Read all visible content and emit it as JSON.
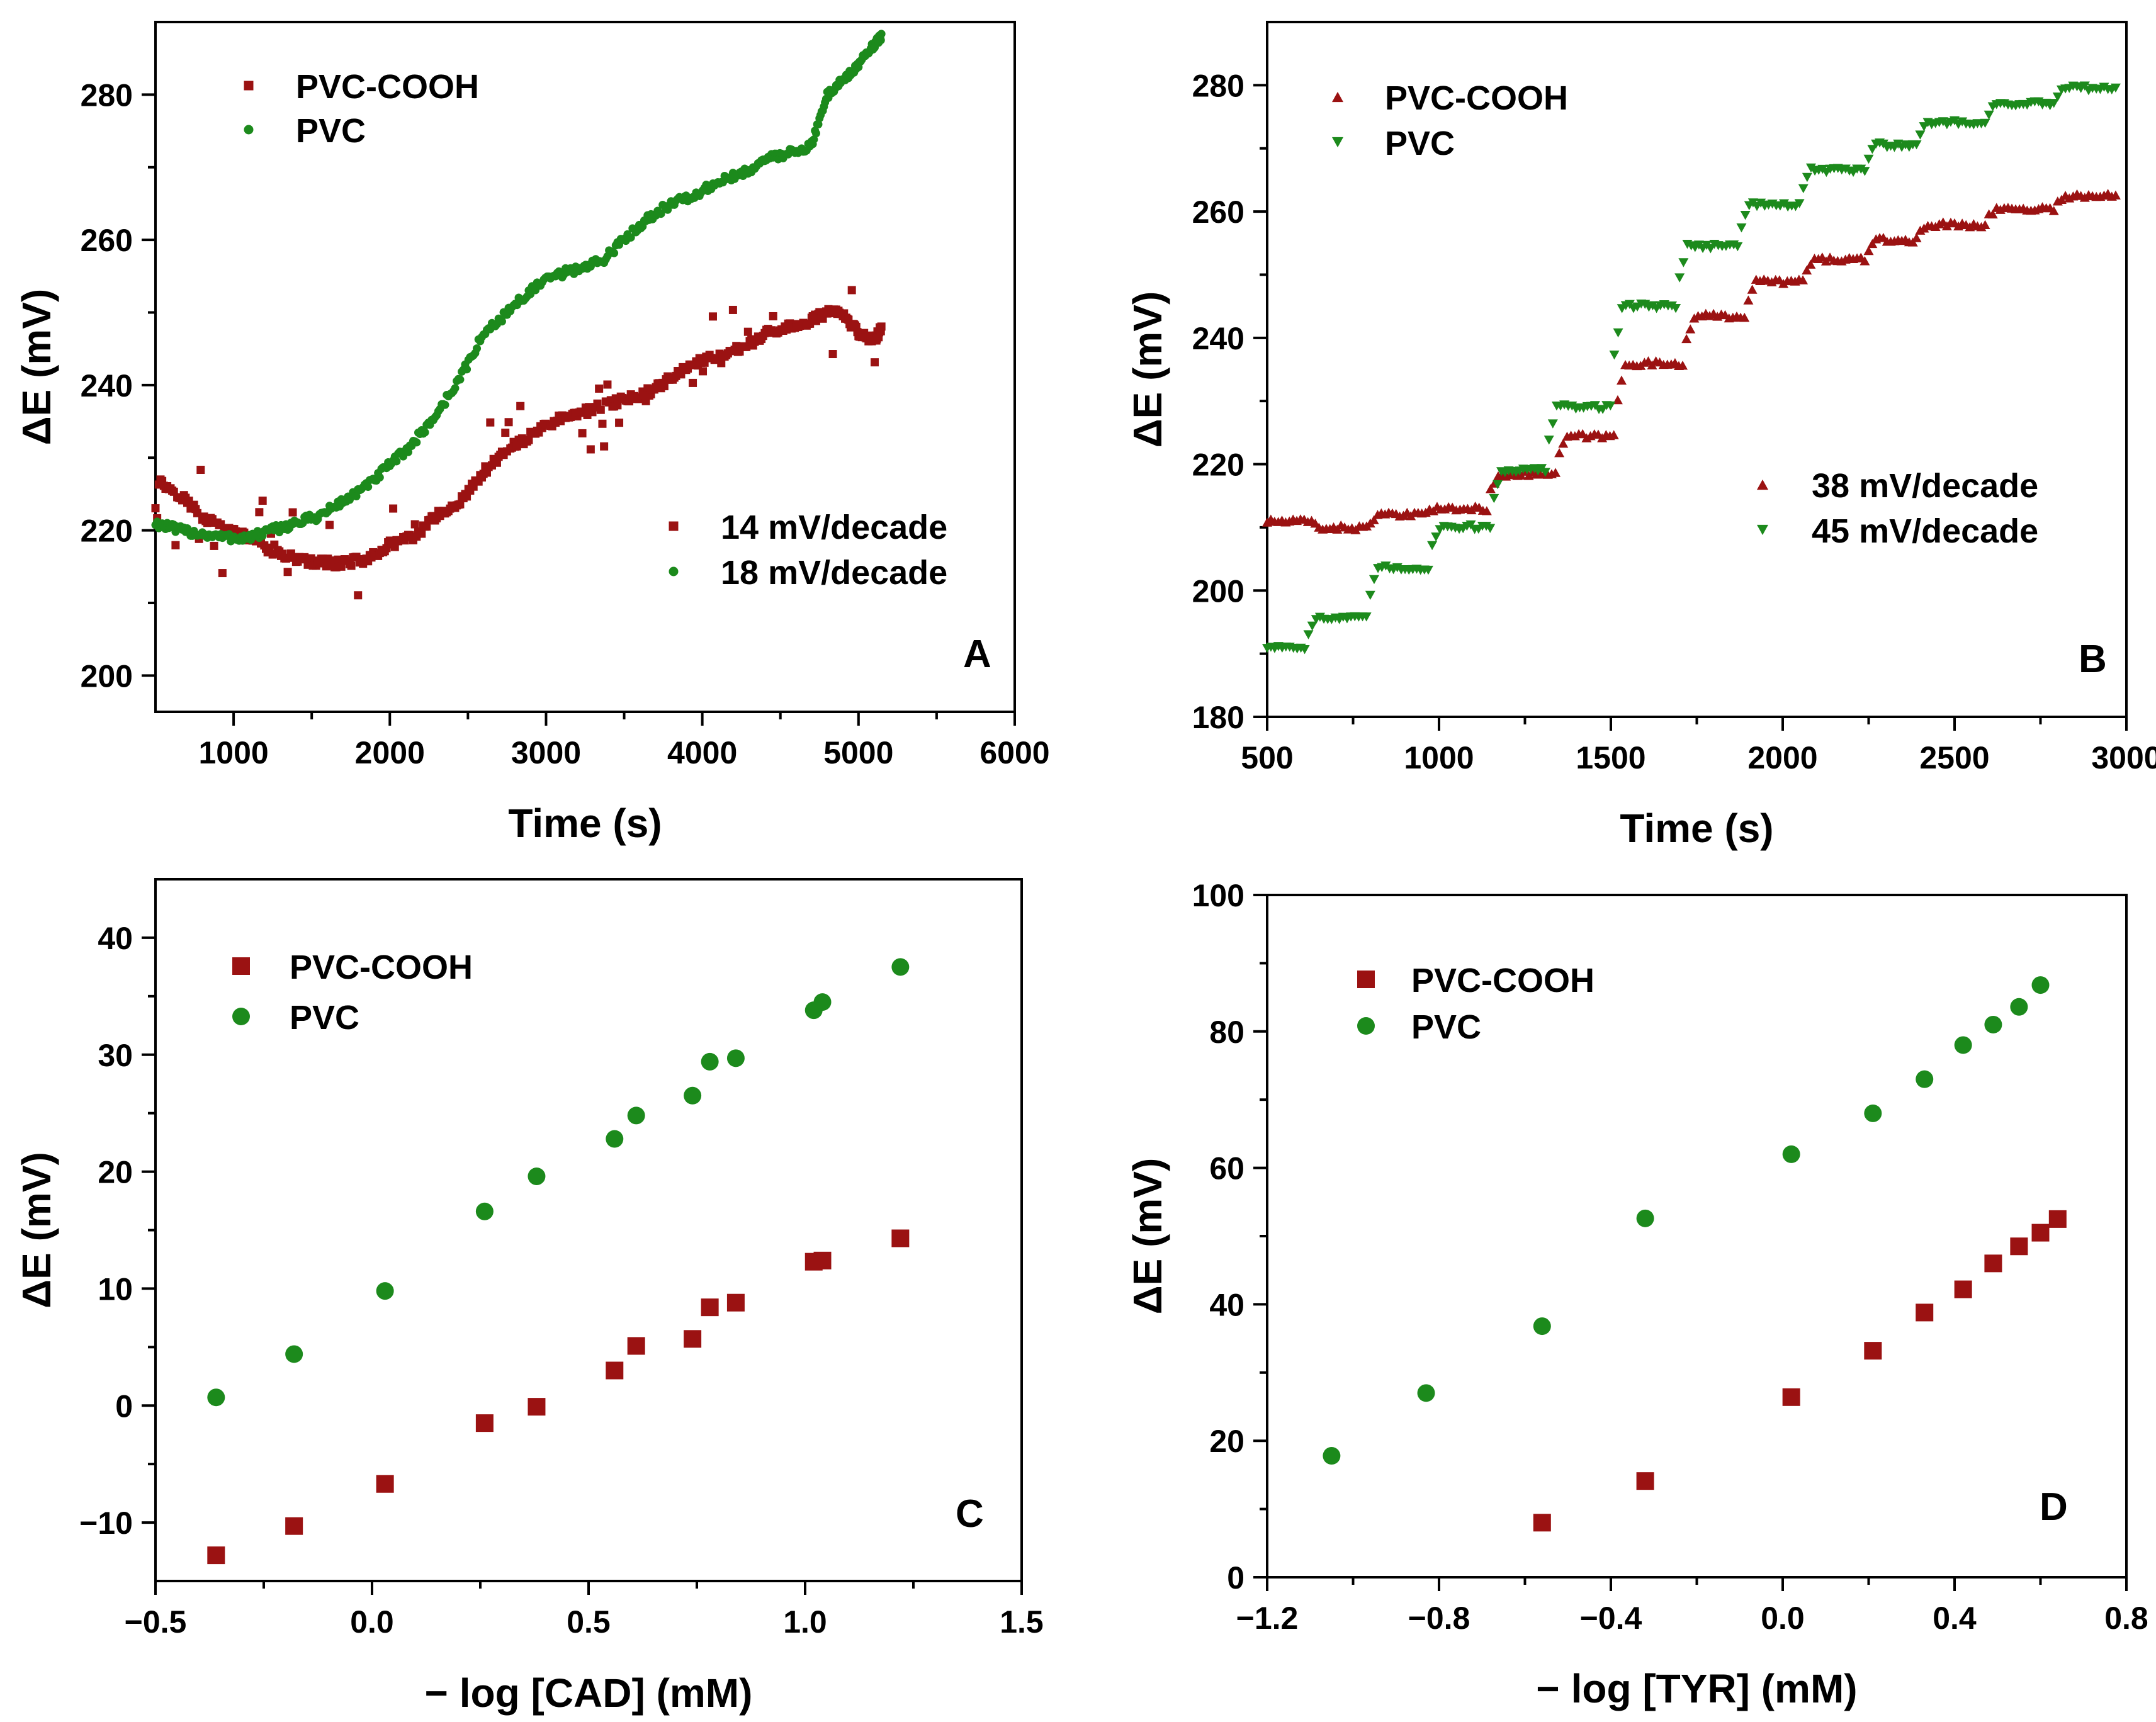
{
  "colors": {
    "cooh": "#9b1212",
    "pvc": "#1c8a1c"
  },
  "chart_data": [
    {
      "id": "A",
      "type": "scatter",
      "panel_label": "A",
      "xlabel": "Time (s)",
      "ylabel": "ΔE (mV)",
      "xlim": [
        500,
        6000
      ],
      "ylim": [
        195,
        290
      ],
      "xticks": [
        1000,
        2000,
        3000,
        4000,
        5000,
        6000
      ],
      "xtick_labels": [
        "1000",
        "2000",
        "3000",
        "4000",
        "5000",
        "6000"
      ],
      "yticks": [
        200,
        220,
        240,
        260,
        280
      ],
      "ytick_labels": [
        "200",
        "220",
        "240",
        "260",
        "280"
      ],
      "legend": [
        {
          "label": "PVC-COOH",
          "marker": "small-square",
          "color": "#9b1212"
        },
        {
          "label": "PVC",
          "marker": "small-circle",
          "color": "#1c8a1c"
        }
      ],
      "annotations": [
        {
          "label": "14 mV/decade",
          "marker": "small-square",
          "color": "#9b1212"
        },
        {
          "label": "18 mV/decade",
          "marker": "small-circle",
          "color": "#1c8a1c"
        }
      ],
      "series": [
        {
          "name": "PVC-COOH",
          "color": "#9b1212",
          "marker": "small-square",
          "x": [
            500,
            650,
            800,
            950,
            1100,
            1250,
            1400,
            1550,
            1700,
            1850,
            2000,
            2150,
            2300,
            2450,
            2600,
            2750,
            2900,
            3050,
            3200,
            3350,
            3500,
            3650,
            3800,
            3950,
            4100,
            4250,
            4400,
            4550,
            4700,
            4800,
            4900,
            5000,
            5100,
            5150
          ],
          "y": [
            227,
            225,
            222,
            220,
            219,
            217,
            216,
            215.5,
            215.5,
            216,
            218,
            219,
            222,
            224,
            228,
            231,
            233,
            235,
            236,
            237,
            238,
            239,
            241,
            243,
            244,
            245,
            247,
            248,
            249,
            250,
            250,
            247,
            246,
            248
          ]
        },
        {
          "name": "PVC",
          "color": "#1c8a1c",
          "marker": "small-circle",
          "x": [
            500,
            650,
            800,
            950,
            1100,
            1250,
            1400,
            1550,
            1700,
            1850,
            2000,
            2150,
            2300,
            2450,
            2600,
            2750,
            2900,
            3050,
            3200,
            3350,
            3500,
            3650,
            3800,
            3950,
            4100,
            4250,
            4400,
            4550,
            4700,
            4800,
            4900,
            5000,
            5100,
            5150
          ],
          "y": [
            221,
            220,
            219.5,
            219,
            219,
            220,
            221,
            222,
            224,
            226,
            229,
            232,
            236,
            241,
            247,
            250,
            253,
            255,
            256,
            257,
            260,
            263,
            265,
            266,
            268,
            269,
            271,
            272,
            273,
            280,
            282,
            284,
            287,
            288
          ]
        }
      ]
    },
    {
      "id": "B",
      "type": "scatter",
      "panel_label": "B",
      "xlabel": "Time (s)",
      "ylabel": "ΔE (mV)",
      "xlim": [
        500,
        3000
      ],
      "ylim": [
        180,
        290
      ],
      "xticks": [
        500,
        1000,
        1500,
        2000,
        2500,
        3000
      ],
      "xtick_labels": [
        "500",
        "1000",
        "1500",
        "2000",
        "2500",
        "3000"
      ],
      "yticks": [
        180,
        200,
        220,
        240,
        260,
        280
      ],
      "ytick_labels": [
        "180",
        "200",
        "220",
        "240",
        "260",
        "280"
      ],
      "legend": [
        {
          "label": "PVC-COOH",
          "marker": "triangle-up",
          "color": "#9b1212"
        },
        {
          "label": "PVC",
          "marker": "triangle-down",
          "color": "#1c8a1c"
        }
      ],
      "annotations": [
        {
          "label": "38 mV/decade",
          "marker": "triangle-up",
          "color": "#9b1212"
        },
        {
          "label": "45 mV/decade",
          "marker": "triangle-down",
          "color": "#1c8a1c"
        }
      ],
      "series": [
        {
          "name": "PVC-COOH",
          "color": "#9b1212",
          "marker": "triangle-up",
          "steps": [
            [
              500,
              640,
              211
            ],
            [
              640,
              800,
              210
            ],
            [
              800,
              950,
              212
            ],
            [
              950,
              1150,
              213
            ],
            [
              1150,
              1350,
              218.5
            ],
            [
              1350,
              1520,
              224.5
            ],
            [
              1520,
              1720,
              236
            ],
            [
              1720,
              1900,
              243.5
            ],
            [
              1900,
              2070,
              249
            ],
            [
              2070,
              2250,
              252.5
            ],
            [
              2250,
              2400,
              255.5
            ],
            [
              2400,
              2600,
              258
            ],
            [
              2600,
              2800,
              260.5
            ],
            [
              2800,
              2980,
              262.5
            ]
          ]
        },
        {
          "name": "PVC",
          "color": "#1c8a1c",
          "marker": "triangle-down",
          "steps": [
            [
              500,
              620,
              191
            ],
            [
              620,
              800,
              195.5
            ],
            [
              800,
              980,
              203.5
            ],
            [
              980,
              1160,
              210
            ],
            [
              1160,
              1320,
              219
            ],
            [
              1320,
              1510,
              229
            ],
            [
              1510,
              1700,
              245
            ],
            [
              1700,
              1880,
              254.5
            ],
            [
              1880,
              2060,
              261
            ],
            [
              2060,
              2250,
              266.5
            ],
            [
              2250,
              2400,
              270.5
            ],
            [
              2400,
              2600,
              274
            ],
            [
              2600,
              2800,
              277
            ],
            [
              2800,
              2980,
              279.5
            ]
          ]
        }
      ]
    },
    {
      "id": "C",
      "type": "scatter",
      "panel_label": "C",
      "xlabel": "− log [CAD] (mM)",
      "ylabel": "ΔE (mV)",
      "xlim": [
        -0.5,
        1.5
      ],
      "ylim": [
        -15,
        45
      ],
      "xticks": [
        -0.5,
        0.0,
        0.5,
        1.0,
        1.5
      ],
      "xtick_labels": [
        "−0.5",
        "0.0",
        "0.5",
        "1.0",
        "1.5"
      ],
      "yticks": [
        -10,
        0,
        10,
        20,
        30,
        40
      ],
      "ytick_labels": [
        "−10",
        "0",
        "10",
        "20",
        "30",
        "40"
      ],
      "legend": [
        {
          "label": "PVC-COOH",
          "marker": "square",
          "color": "#9b1212"
        },
        {
          "label": "PVC",
          "marker": "circle",
          "color": "#1c8a1c"
        }
      ],
      "series": [
        {
          "name": "PVC-COOH",
          "color": "#9b1212",
          "marker": "square",
          "x": [
            -0.36,
            -0.18,
            0.03,
            0.26,
            0.38,
            0.56,
            0.61,
            0.74,
            0.78,
            0.84,
            1.02,
            1.04,
            1.22
          ],
          "y": [
            -12.8,
            -10.3,
            -6.7,
            -1.5,
            -0.1,
            3.0,
            5.1,
            5.7,
            8.4,
            8.8,
            12.3,
            12.4,
            14.3
          ]
        },
        {
          "name": "PVC",
          "color": "#1c8a1c",
          "marker": "circle",
          "x": [
            -0.36,
            -0.18,
            0.03,
            0.26,
            0.38,
            0.56,
            0.61,
            0.74,
            0.78,
            0.84,
            1.02,
            1.04,
            1.22
          ],
          "y": [
            0.7,
            4.4,
            9.8,
            16.6,
            19.6,
            22.8,
            24.8,
            26.5,
            29.4,
            29.7,
            33.8,
            34.5,
            37.5
          ]
        }
      ]
    },
    {
      "id": "D",
      "type": "scatter",
      "panel_label": "D",
      "xlabel": "− log [TYR] (mM)",
      "ylabel": "ΔE (mV)",
      "xlim": [
        -1.2,
        0.8
      ],
      "ylim": [
        0,
        100
      ],
      "xticks": [
        -1.2,
        -0.8,
        -0.4,
        0.0,
        0.4,
        0.8
      ],
      "xtick_labels": [
        "−1.2",
        "−0.8",
        "−0.4",
        "0.0",
        "0.4",
        "0.8"
      ],
      "yticks": [
        0,
        20,
        40,
        60,
        80,
        100
      ],
      "ytick_labels": [
        "0",
        "20",
        "40",
        "60",
        "80",
        "100"
      ],
      "legend": [
        {
          "label": "PVC-COOH",
          "marker": "square",
          "color": "#9b1212"
        },
        {
          "label": "PVC",
          "marker": "circle",
          "color": "#1c8a1c"
        }
      ],
      "series": [
        {
          "name": "PVC-COOH",
          "color": "#9b1212",
          "marker": "square",
          "x": [
            -0.56,
            -0.32,
            0.02,
            0.21,
            0.33,
            0.42,
            0.49,
            0.55,
            0.6,
            0.64
          ],
          "y": [
            8.0,
            14.1,
            26.4,
            33.2,
            38.8,
            42.2,
            46.0,
            48.5,
            50.5,
            52.5
          ]
        },
        {
          "name": "PVC",
          "color": "#1c8a1c",
          "marker": "circle",
          "x": [
            -1.05,
            -0.83,
            -0.56,
            -0.32,
            0.02,
            0.21,
            0.33,
            0.42,
            0.49,
            0.55,
            0.6
          ],
          "y": [
            17.8,
            27.0,
            36.8,
            52.6,
            62.0,
            68.0,
            73.0,
            78.0,
            81.0,
            83.6,
            86.8
          ]
        }
      ]
    }
  ]
}
